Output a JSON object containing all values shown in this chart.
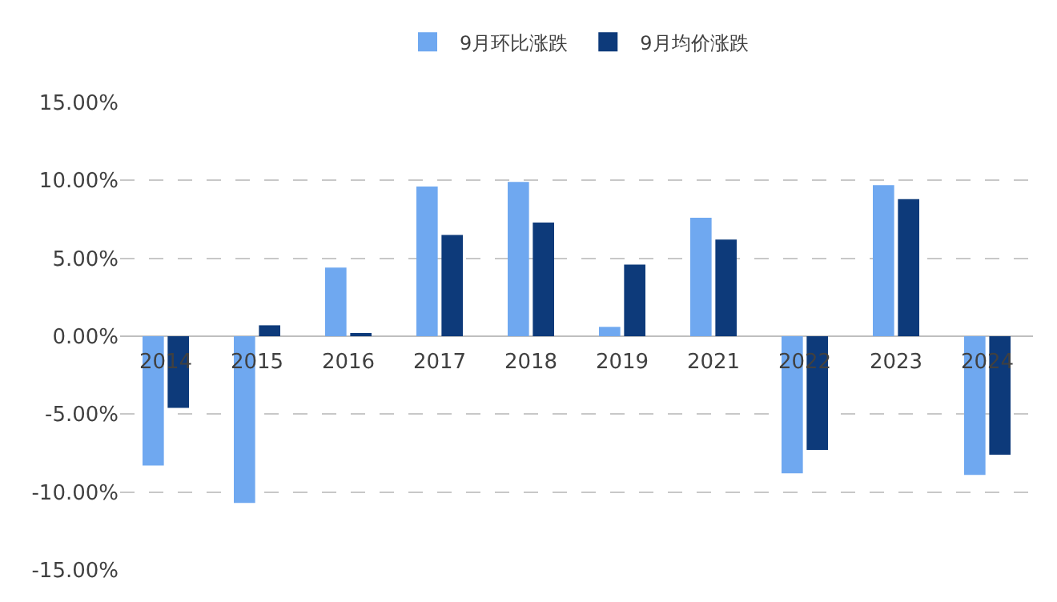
{
  "chart_data": {
    "type": "bar",
    "categories": [
      "2014",
      "2015",
      "2016",
      "2017",
      "2018",
      "2019",
      "2021",
      "2022",
      "2023",
      "2024"
    ],
    "series": [
      {
        "name": "9月环比涨跌",
        "color": "#6fa8f0",
        "values": [
          -8.3,
          -10.7,
          4.4,
          9.6,
          9.9,
          0.6,
          7.6,
          -8.8,
          9.7,
          -8.9
        ]
      },
      {
        "name": "9月均价涨跌",
        "color": "#0d3a7a",
        "values": [
          -4.6,
          0.7,
          0.2,
          6.5,
          7.3,
          4.6,
          6.2,
          -7.3,
          8.8,
          -7.6
        ]
      }
    ],
    "ylim": [
      -15,
      15
    ],
    "yticks": [
      {
        "value": -15,
        "label": "-15.00%"
      },
      {
        "value": -10,
        "label": "-10.00%"
      },
      {
        "value": -5,
        "label": "-5.00%"
      },
      {
        "value": 0,
        "label": "0.00%"
      },
      {
        "value": 5,
        "label": "5.00%"
      },
      {
        "value": 10,
        "label": "10.00%"
      },
      {
        "value": 15,
        "label": "15.00%"
      }
    ],
    "grid": "y",
    "legend": "top"
  }
}
